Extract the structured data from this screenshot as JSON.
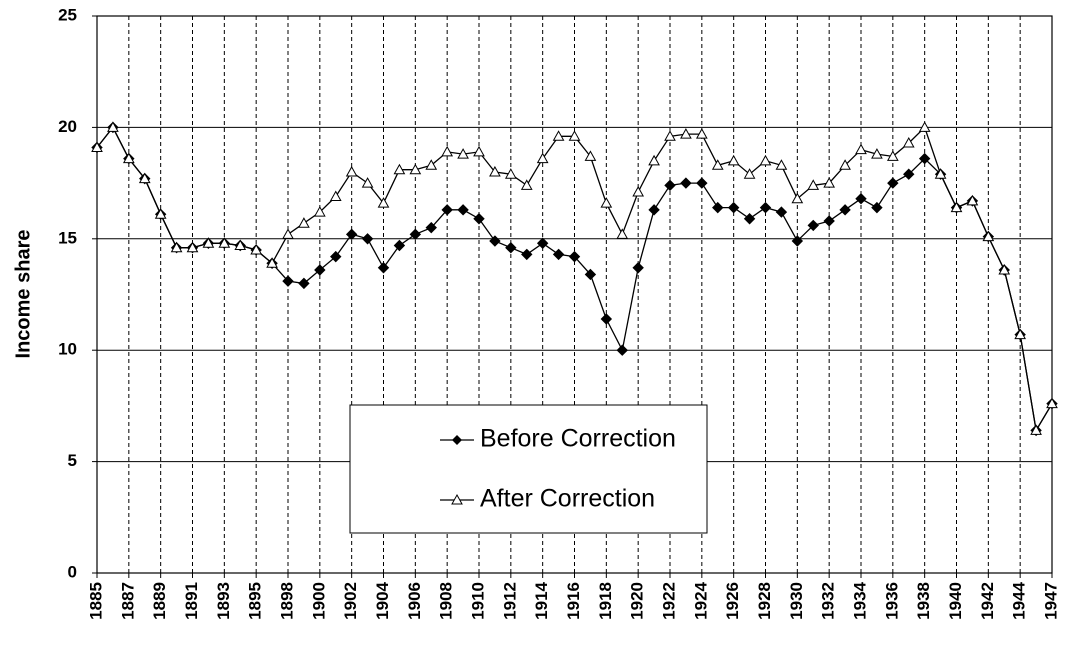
{
  "chart_data": {
    "type": "line",
    "y_label": "Income share",
    "categories": [
      "1885",
      null,
      "1887",
      null,
      "1889",
      null,
      "1891",
      null,
      "1893",
      null,
      "1895",
      null,
      "1898",
      null,
      "1900",
      null,
      "1902",
      null,
      "1904",
      null,
      "1906",
      null,
      "1908",
      null,
      "1910",
      null,
      "1912",
      null,
      "1914",
      null,
      "1916",
      null,
      "1918",
      null,
      "1920",
      null,
      "1922",
      null,
      "1924",
      null,
      "1926",
      null,
      "1928",
      null,
      "1930",
      null,
      "1932",
      null,
      "1934",
      null,
      "1936",
      null,
      "1938",
      null,
      "1940",
      null,
      "1942",
      null,
      "1944",
      null,
      "1947"
    ],
    "series": [
      {
        "name": "Before Correction",
        "color": "#000000",
        "marker": "diamond",
        "values": [
          19.1,
          20.0,
          18.6,
          17.7,
          16.1,
          14.6,
          14.6,
          14.8,
          14.8,
          14.7,
          14.5,
          13.9,
          13.1,
          13.0,
          13.6,
          14.2,
          15.2,
          15.0,
          13.7,
          14.7,
          15.2,
          15.5,
          16.3,
          16.3,
          15.9,
          14.9,
          14.6,
          14.3,
          14.8,
          14.3,
          14.2,
          13.4,
          11.4,
          10.0,
          13.7,
          16.3,
          17.4,
          17.5,
          17.5,
          16.4,
          16.4,
          15.9,
          16.4,
          16.2,
          14.9,
          15.6,
          15.8,
          16.3,
          16.8,
          16.4,
          17.5,
          17.9,
          18.6,
          17.9,
          16.4,
          16.7,
          15.1,
          13.6,
          10.7,
          6.4,
          7.6
        ]
      },
      {
        "name": "After Correction",
        "color": "#000000",
        "marker": "triangle",
        "values": [
          19.1,
          20.0,
          18.6,
          17.7,
          16.1,
          14.6,
          14.6,
          14.8,
          14.8,
          14.7,
          14.5,
          13.9,
          15.2,
          15.7,
          16.2,
          16.9,
          18.0,
          17.5,
          16.6,
          18.1,
          18.1,
          18.3,
          18.9,
          18.8,
          18.9,
          18.0,
          17.9,
          17.4,
          18.6,
          19.6,
          19.6,
          18.7,
          16.6,
          15.2,
          17.1,
          18.5,
          19.6,
          19.7,
          19.7,
          18.3,
          18.5,
          17.9,
          18.5,
          18.3,
          16.8,
          17.4,
          17.5,
          18.3,
          19.0,
          18.8,
          18.7,
          19.3,
          20.0,
          17.9,
          16.4,
          16.7,
          15.1,
          13.6,
          10.7,
          6.4,
          7.6
        ]
      }
    ],
    "ylim": [
      0,
      25
    ],
    "yticks": [
      0,
      5,
      10,
      15,
      20,
      25
    ],
    "grid": true,
    "x_grid": "dashed",
    "legend": "lower center"
  }
}
